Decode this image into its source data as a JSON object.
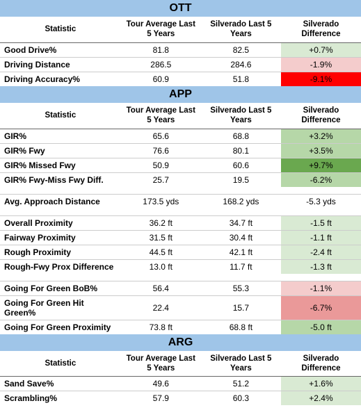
{
  "headers": {
    "stat": "Statistic",
    "tour": "Tour Average Last 5 Years",
    "silv": "Silverado Last 5 Years",
    "diff": "Silverado Difference"
  },
  "colors": {
    "light_green": "#d9ead3",
    "mid_green": "#b6d7a8",
    "dark_green": "#6aa84f",
    "light_red": "#f4cccc",
    "mid_red": "#ea9999",
    "dark_red": "#ff0000",
    "white": "#ffffff"
  },
  "sections": [
    {
      "title": "OTT",
      "groups": [
        [
          {
            "name": "Good Drive%",
            "tour": "81.8",
            "silv": "82.5",
            "diff": "+0.7%",
            "color": "light_green"
          },
          {
            "name": "Driving Distance",
            "tour": "286.5",
            "silv": "284.6",
            "diff": "-1.9%",
            "color": "light_red"
          },
          {
            "name": "Driving Accuracy%",
            "tour": "60.9",
            "silv": "51.8",
            "diff": "-9.1%",
            "color": "dark_red"
          }
        ]
      ]
    },
    {
      "title": "APP",
      "groups": [
        [
          {
            "name": "GIR%",
            "tour": "65.6",
            "silv": "68.8",
            "diff": "+3.2%",
            "color": "mid_green"
          },
          {
            "name": "GIR% Fwy",
            "tour": "76.6",
            "silv": "80.1",
            "diff": "+3.5%",
            "color": "mid_green"
          },
          {
            "name": "GIR% Missed Fwy",
            "tour": "50.9",
            "silv": "60.6",
            "diff": "+9.7%",
            "color": "dark_green"
          },
          {
            "name": "GIR% Fwy-Miss Fwy Diff.",
            "tour": "25.7",
            "silv": "19.5",
            "diff": "-6.2%",
            "color": "mid_green"
          }
        ],
        [
          {
            "name": "Avg. Approach Distance",
            "tour": "173.5 yds",
            "silv": "168.2 yds",
            "diff": "-5.3 yds",
            "color": "white"
          }
        ],
        [
          {
            "name": "Overall Proximity",
            "tour": "36.2 ft",
            "silv": "34.7 ft",
            "diff": "-1.5 ft",
            "color": "light_green"
          },
          {
            "name": "Fairway Proximity",
            "tour": "31.5 ft",
            "silv": "30.4 ft",
            "diff": "-1.1 ft",
            "color": "light_green"
          },
          {
            "name": "Rough Proximity",
            "tour": "44.5 ft",
            "silv": "42.1 ft",
            "diff": "-2.4 ft",
            "color": "light_green"
          },
          {
            "name": "Rough-Fwy Prox Difference",
            "tour": "13.0 ft",
            "silv": "11.7 ft",
            "diff": "-1.3 ft",
            "color": "light_green"
          }
        ],
        [
          {
            "name": "Going For Green BoB%",
            "tour": "56.4",
            "silv": "55.3",
            "diff": "-1.1%",
            "color": "light_red"
          },
          {
            "name": "Going For Green Hit Green%",
            "tour": "22.4",
            "silv": "15.7",
            "diff": "-6.7%",
            "color": "mid_red"
          },
          {
            "name": "Going For Green Proximity",
            "tour": "73.8 ft",
            "silv": "68.8 ft",
            "diff": "-5.0 ft",
            "color": "mid_green"
          }
        ]
      ]
    },
    {
      "title": "ARG",
      "groups": [
        [
          {
            "name": "Sand Save%",
            "tour": "49.6",
            "silv": "51.2",
            "diff": "+1.6%",
            "color": "light_green"
          },
          {
            "name": "Scrambling%",
            "tour": "57.9",
            "silv": "60.3",
            "diff": "+2.4%",
            "color": "light_green"
          }
        ]
      ]
    }
  ]
}
